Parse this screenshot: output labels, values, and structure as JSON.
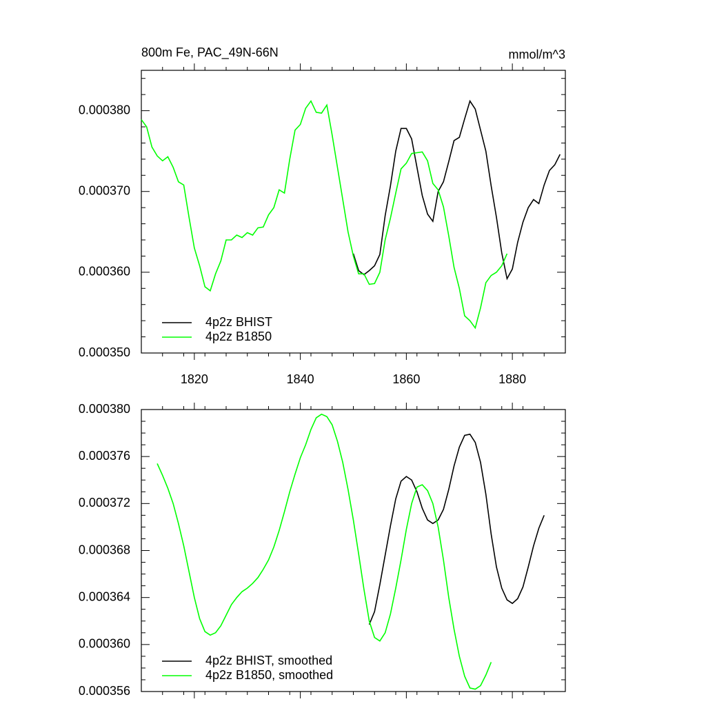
{
  "chart_data": [
    {
      "type": "line",
      "title": "800m Fe, PAC_49N-66N",
      "units": "mmol/m^3",
      "xlim": [
        1810,
        1890
      ],
      "xticks": [
        1820,
        1840,
        1860,
        1880
      ],
      "ylim": [
        0.00035,
        0.000385
      ],
      "yticks": [
        {
          "value": 0.00035,
          "label": "0.000350"
        },
        {
          "value": 0.00036,
          "label": "0.000360"
        },
        {
          "value": 0.00037,
          "label": "0.000370"
        },
        {
          "value": 0.00038,
          "label": "0.000380"
        }
      ],
      "legend": "lower left",
      "series": [
        {
          "name": "4p2z BHIST",
          "color": "#000000",
          "x": [
            1850,
            1851,
            1852,
            1853,
            1854,
            1855,
            1856,
            1857,
            1858,
            1859,
            1860,
            1861,
            1862,
            1863,
            1864,
            1865,
            1866,
            1867,
            1868,
            1869,
            1870,
            1871,
            1872,
            1873,
            1874,
            1875,
            1876,
            1877,
            1878,
            1879,
            1880,
            1881,
            1882,
            1883,
            1884,
            1885,
            1886,
            1887,
            1888,
            1889
          ],
          "values": [
            0.0003623,
            0.0003602,
            0.0003597,
            0.0003602,
            0.0003608,
            0.0003622,
            0.000367,
            0.0003707,
            0.000375,
            0.0003778,
            0.0003778,
            0.0003765,
            0.000373,
            0.0003695,
            0.0003672,
            0.0003663,
            0.00037,
            0.0003712,
            0.0003737,
            0.0003763,
            0.0003767,
            0.000379,
            0.0003812,
            0.0003802,
            0.0003776,
            0.000375,
            0.0003707,
            0.0003668,
            0.0003624,
            0.0003592,
            0.0003604,
            0.0003637,
            0.0003662,
            0.000368,
            0.000369,
            0.0003685,
            0.0003708,
            0.0003726,
            0.0003733,
            0.0003746
          ]
        },
        {
          "name": "4p2z B1850",
          "color": "#00ff00",
          "x": [
            1810,
            1811,
            1812,
            1813,
            1814,
            1815,
            1816,
            1817,
            1818,
            1819,
            1820,
            1821,
            1822,
            1823,
            1824,
            1825,
            1826,
            1827,
            1828,
            1829,
            1830,
            1831,
            1832,
            1833,
            1834,
            1835,
            1836,
            1837,
            1838,
            1839,
            1840,
            1841,
            1842,
            1843,
            1844,
            1845,
            1846,
            1847,
            1848,
            1849,
            1850,
            1851,
            1852,
            1853,
            1854,
            1855,
            1856,
            1857,
            1858,
            1859,
            1860,
            1861,
            1862,
            1863,
            1864,
            1865,
            1866,
            1867,
            1868,
            1869,
            1870,
            1871,
            1872,
            1873,
            1874,
            1875,
            1876,
            1877,
            1878,
            1879
          ],
          "values": [
            0.0003789,
            0.000378,
            0.0003755,
            0.0003744,
            0.0003738,
            0.0003743,
            0.000373,
            0.0003712,
            0.0003708,
            0.0003668,
            0.000363,
            0.0003608,
            0.0003582,
            0.0003577,
            0.0003598,
            0.0003614,
            0.000364,
            0.000364,
            0.0003646,
            0.0003643,
            0.0003649,
            0.0003646,
            0.0003655,
            0.0003656,
            0.0003671,
            0.000368,
            0.0003702,
            0.0003698,
            0.000374,
            0.0003776,
            0.0003783,
            0.0003803,
            0.0003812,
            0.0003798,
            0.0003797,
            0.0003807,
            0.000377,
            0.000373,
            0.000369,
            0.000365,
            0.000362,
            0.0003598,
            0.0003598,
            0.0003585,
            0.0003586,
            0.00036,
            0.000364,
            0.0003667,
            0.0003698,
            0.0003728,
            0.0003735,
            0.0003747,
            0.0003748,
            0.0003749,
            0.0003738,
            0.000371,
            0.0003702,
            0.0003681,
            0.0003645,
            0.0003606,
            0.000358,
            0.0003546,
            0.000354,
            0.0003531,
            0.0003556,
            0.0003587,
            0.0003596,
            0.00036,
            0.0003608,
            0.0003623
          ]
        }
      ]
    },
    {
      "type": "line",
      "xlim": [
        1810,
        1890
      ],
      "xticks": [
        1820,
        1840,
        1860,
        1880
      ],
      "show_xtick_labels": false,
      "ylim": [
        0.000356,
        0.00038
      ],
      "yticks": [
        {
          "value": 0.000356,
          "label": "0.000356"
        },
        {
          "value": 0.00036,
          "label": "0.000360"
        },
        {
          "value": 0.000364,
          "label": "0.000364"
        },
        {
          "value": 0.000368,
          "label": "0.000368"
        },
        {
          "value": 0.000372,
          "label": "0.000372"
        },
        {
          "value": 0.000376,
          "label": "0.000376"
        },
        {
          "value": 0.00038,
          "label": "0.000380"
        }
      ],
      "legend": "lower left",
      "series": [
        {
          "name": "4p2z BHIST, smoothed",
          "color": "#000000",
          "x": [
            1853,
            1854,
            1855,
            1856,
            1857,
            1858,
            1859,
            1860,
            1861,
            1862,
            1863,
            1864,
            1865,
            1866,
            1867,
            1868,
            1869,
            1870,
            1871,
            1872,
            1873,
            1874,
            1875,
            1876,
            1877,
            1878,
            1879,
            1880,
            1881,
            1882,
            1883,
            1884,
            1885,
            1886
          ],
          "values": [
            0.0003617,
            0.0003628,
            0.0003651,
            0.0003676,
            0.0003701,
            0.0003724,
            0.0003739,
            0.0003743,
            0.000374,
            0.000373,
            0.0003716,
            0.0003706,
            0.0003703,
            0.0003706,
            0.0003715,
            0.0003732,
            0.0003752,
            0.0003768,
            0.0003778,
            0.0003779,
            0.0003772,
            0.0003755,
            0.0003728,
            0.0003694,
            0.0003666,
            0.0003648,
            0.0003638,
            0.0003635,
            0.0003639,
            0.0003649,
            0.0003666,
            0.0003684,
            0.0003699,
            0.000371
          ]
        },
        {
          "name": "4p2z B1850, smoothed",
          "color": "#00ff00",
          "x": [
            1813,
            1814,
            1815,
            1816,
            1817,
            1818,
            1819,
            1820,
            1821,
            1822,
            1823,
            1824,
            1825,
            1826,
            1827,
            1828,
            1829,
            1830,
            1831,
            1832,
            1833,
            1834,
            1835,
            1836,
            1837,
            1838,
            1839,
            1840,
            1841,
            1842,
            1843,
            1844,
            1845,
            1846,
            1847,
            1848,
            1849,
            1850,
            1851,
            1852,
            1853,
            1854,
            1855,
            1856,
            1857,
            1858,
            1859,
            1860,
            1861,
            1862,
            1863,
            1864,
            1865,
            1866,
            1867,
            1868,
            1869,
            1870,
            1871,
            1872,
            1873,
            1874,
            1875,
            1876
          ],
          "values": [
            0.0003754,
            0.0003744,
            0.0003733,
            0.000372,
            0.0003703,
            0.0003684,
            0.0003662,
            0.000364,
            0.0003622,
            0.0003611,
            0.0003608,
            0.000361,
            0.0003616,
            0.0003625,
            0.0003634,
            0.000364,
            0.0003645,
            0.0003648,
            0.0003652,
            0.0003657,
            0.0003664,
            0.0003672,
            0.0003683,
            0.0003697,
            0.0003713,
            0.000373,
            0.0003745,
            0.0003759,
            0.000377,
            0.0003783,
            0.0003793,
            0.0003796,
            0.0003794,
            0.0003787,
            0.0003773,
            0.0003755,
            0.0003732,
            0.0003706,
            0.0003677,
            0.0003647,
            0.000362,
            0.0003606,
            0.0003603,
            0.000361,
            0.0003626,
            0.0003648,
            0.0003672,
            0.0003698,
            0.000372,
            0.0003734,
            0.0003736,
            0.0003731,
            0.000372,
            0.00037,
            0.0003672,
            0.000364,
            0.0003613,
            0.000359,
            0.0003573,
            0.0003563,
            0.0003562,
            0.0003565,
            0.0003574,
            0.0003585
          ]
        }
      ]
    }
  ]
}
